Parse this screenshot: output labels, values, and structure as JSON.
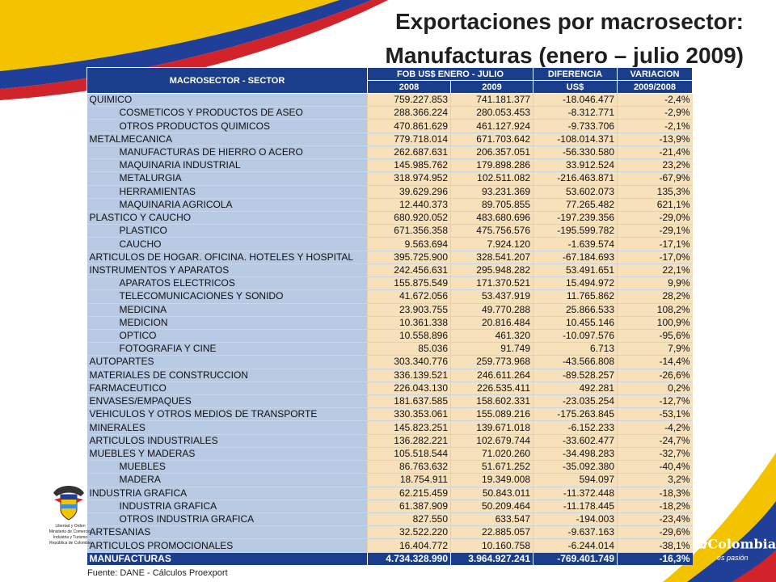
{
  "title_line1": "Exportaciones por macrosector:",
  "title_line2": "Manufacturas (enero – julio 2009)",
  "headers": {
    "sector": "MACROSECTOR - SECTOR",
    "fob": "FOB US$ ENERO - JULIO",
    "y2008": "2008",
    "y2009": "2009",
    "diff1": "DIFERENCIA",
    "diff2": "US$",
    "var1": "VARIACION",
    "var2": "2009/2008"
  },
  "rows": [
    {
      "name": "QUIMICO",
      "sub": false,
      "v2008": "759.227.853",
      "v2009": "741.181.377",
      "diff": "-18.046.477",
      "var": "-2,4%"
    },
    {
      "name": "COSMETICOS Y PRODUCTOS DE ASEO",
      "sub": true,
      "v2008": "288.366.224",
      "v2009": "280.053.453",
      "diff": "-8.312.771",
      "var": "-2,9%"
    },
    {
      "name": "OTROS PRODUCTOS QUIMICOS",
      "sub": true,
      "v2008": "470.861.629",
      "v2009": "461.127.924",
      "diff": "-9.733.706",
      "var": "-2,1%"
    },
    {
      "name": "METALMECANICA",
      "sub": false,
      "v2008": "779.718.014",
      "v2009": "671.703.642",
      "diff": "-108.014.371",
      "var": "-13,9%"
    },
    {
      "name": "MANUFACTURAS DE HIERRO O ACERO",
      "sub": true,
      "v2008": "262.687.631",
      "v2009": "206.357.051",
      "diff": "-56.330.580",
      "var": "-21,4%"
    },
    {
      "name": "MAQUINARIA INDUSTRIAL",
      "sub": true,
      "v2008": "145.985.762",
      "v2009": "179.898.286",
      "diff": "33.912.524",
      "var": "23,2%"
    },
    {
      "name": "METALURGIA",
      "sub": true,
      "v2008": "318.974.952",
      "v2009": "102.511.082",
      "diff": "-216.463.871",
      "var": "-67,9%"
    },
    {
      "name": "HERRAMIENTAS",
      "sub": true,
      "v2008": "39.629.296",
      "v2009": "93.231.369",
      "diff": "53.602.073",
      "var": "135,3%"
    },
    {
      "name": "MAQUINARIA AGRICOLA",
      "sub": true,
      "v2008": "12.440.373",
      "v2009": "89.705.855",
      "diff": "77.265.482",
      "var": "621,1%"
    },
    {
      "name": "PLASTICO Y CAUCHO",
      "sub": false,
      "v2008": "680.920.052",
      "v2009": "483.680.696",
      "diff": "-197.239.356",
      "var": "-29,0%"
    },
    {
      "name": "PLASTICO",
      "sub": true,
      "v2008": "671.356.358",
      "v2009": "475.756.576",
      "diff": "-195.599.782",
      "var": "-29,1%"
    },
    {
      "name": "CAUCHO",
      "sub": true,
      "v2008": "9.563.694",
      "v2009": "7.924.120",
      "diff": "-1.639.574",
      "var": "-17,1%"
    },
    {
      "name": "ARTICULOS DE HOGAR. OFICINA. HOTELES Y HOSPITAL",
      "sub": false,
      "v2008": "395.725.900",
      "v2009": "328.541.207",
      "diff": "-67.184.693",
      "var": "-17,0%"
    },
    {
      "name": "INSTRUMENTOS Y APARATOS",
      "sub": false,
      "v2008": "242.456.631",
      "v2009": "295.948.282",
      "diff": "53.491.651",
      "var": "22,1%"
    },
    {
      "name": "APARATOS ELECTRICOS",
      "sub": true,
      "v2008": "155.875.549",
      "v2009": "171.370.521",
      "diff": "15.494.972",
      "var": "9,9%"
    },
    {
      "name": "TELECOMUNICACIONES Y SONIDO",
      "sub": true,
      "v2008": "41.672.056",
      "v2009": "53.437.919",
      "diff": "11.765.862",
      "var": "28,2%"
    },
    {
      "name": "MEDICINA",
      "sub": true,
      "v2008": "23.903.755",
      "v2009": "49.770.288",
      "diff": "25.866.533",
      "var": "108,2%"
    },
    {
      "name": "MEDICION",
      "sub": true,
      "v2008": "10.361.338",
      "v2009": "20.816.484",
      "diff": "10.455.146",
      "var": "100,9%"
    },
    {
      "name": "OPTICO",
      "sub": true,
      "v2008": "10.558.896",
      "v2009": "461.320",
      "diff": "-10.097.576",
      "var": "-95,6%"
    },
    {
      "name": "FOTOGRAFIA Y CINE",
      "sub": true,
      "v2008": "85.036",
      "v2009": "91.749",
      "diff": "6.713",
      "var": "7,9%"
    },
    {
      "name": "AUTOPARTES",
      "sub": false,
      "v2008": "303.340.776",
      "v2009": "259.773.968",
      "diff": "-43.566.808",
      "var": "-14,4%"
    },
    {
      "name": "MATERIALES DE CONSTRUCCION",
      "sub": false,
      "v2008": "336.139.521",
      "v2009": "246.611.264",
      "diff": "-89.528.257",
      "var": "-26,6%"
    },
    {
      "name": "FARMACEUTICO",
      "sub": false,
      "v2008": "226.043.130",
      "v2009": "226.535.411",
      "diff": "492.281",
      "var": "0,2%"
    },
    {
      "name": "ENVASES/EMPAQUES",
      "sub": false,
      "v2008": "181.637.585",
      "v2009": "158.602.331",
      "diff": "-23.035.254",
      "var": "-12,7%"
    },
    {
      "name": "VEHICULOS Y OTROS MEDIOS DE TRANSPORTE",
      "sub": false,
      "v2008": "330.353.061",
      "v2009": "155.089.216",
      "diff": "-175.263.845",
      "var": "-53,1%"
    },
    {
      "name": "MINERALES",
      "sub": false,
      "v2008": "145.823.251",
      "v2009": "139.671.018",
      "diff": "-6.152.233",
      "var": "-4,2%"
    },
    {
      "name": "ARTICULOS INDUSTRIALES",
      "sub": false,
      "v2008": "136.282.221",
      "v2009": "102.679.744",
      "diff": "-33.602.477",
      "var": "-24,7%"
    },
    {
      "name": "MUEBLES Y MADERAS",
      "sub": false,
      "v2008": "105.518.544",
      "v2009": "71.020.260",
      "diff": "-34.498.283",
      "var": "-32,7%"
    },
    {
      "name": "MUEBLES",
      "sub": true,
      "v2008": "86.763.632",
      "v2009": "51.671.252",
      "diff": "-35.092.380",
      "var": "-40,4%"
    },
    {
      "name": "MADERA",
      "sub": true,
      "v2008": "18.754.911",
      "v2009": "19.349.008",
      "diff": "594.097",
      "var": "3,2%"
    },
    {
      "name": "INDUSTRIA GRAFICA",
      "sub": false,
      "v2008": "62.215.459",
      "v2009": "50.843.011",
      "diff": "-11.372.448",
      "var": "-18,3%"
    },
    {
      "name": "INDUSTRIA GRAFICA",
      "sub": true,
      "v2008": "61.387.909",
      "v2009": "50.209.464",
      "diff": "-11.178.445",
      "var": "-18,2%"
    },
    {
      "name": "OTROS INDUSTRIA GRAFICA",
      "sub": true,
      "v2008": "827.550",
      "v2009": "633.547",
      "diff": "-194.003",
      "var": "-23,4%"
    },
    {
      "name": "ARTESANIAS",
      "sub": false,
      "v2008": "32.522.220",
      "v2009": "22.885.057",
      "diff": "-9.637.163",
      "var": "-29,6%"
    },
    {
      "name": "ARTICULOS PROMOCIONALES",
      "sub": false,
      "v2008": "16.404.772",
      "v2009": "10.160.758",
      "diff": "-6.244.014",
      "var": "-38,1%"
    }
  ],
  "total": {
    "name": "MANUFACTURAS",
    "v2008": "4.734.328.990",
    "v2009": "3.964.927.241",
    "diff": "-769.401.749",
    "var": "-16,3%"
  },
  "source": "Fuente: DANE - Cálculos Proexport",
  "crest_labels": [
    "Libertad y Orden",
    "Ministerio de Comercio,",
    "Industria y Turismo",
    "República de Colombia"
  ],
  "logo": {
    "name": "Colombia",
    "mark": "®",
    "tagline": "es pasión"
  },
  "icons": {
    "crest": "coat-of-arms-icon",
    "logo_mark": "colombia-brand-icon"
  },
  "colors": {
    "header_blue": "#1a3e8c",
    "name_cell": "#b7c9e3",
    "value_cell": "#f6e1ba",
    "swoosh_yellow": "#f3c300",
    "swoosh_blue": "#1f3f99",
    "swoosh_red": "#d2232a"
  }
}
